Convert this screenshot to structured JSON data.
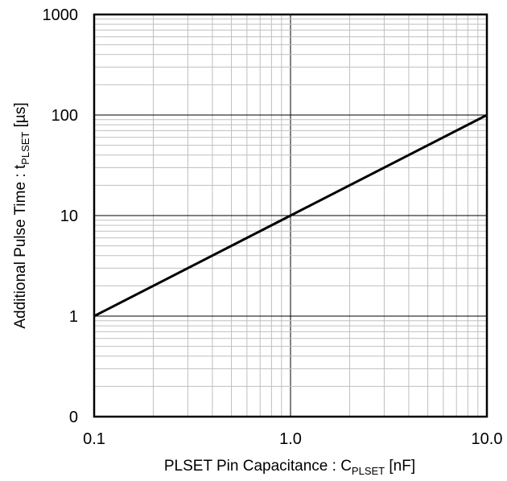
{
  "chart_data": {
    "type": "line",
    "x_scale": "log",
    "y_scale": "log",
    "xlim": [
      0.1,
      10.0
    ],
    "y_axis_range": "0 to 1000 (log decades)",
    "grid": true,
    "x_ticks": [
      "0.1",
      "1.0",
      "10.0"
    ],
    "y_ticks": [
      "0",
      "1",
      "10",
      "100",
      "1000"
    ],
    "xlabel": {
      "main": "PLSET Pin Capacitance : C",
      "subscript": "PLSET",
      "unit": " [nF]"
    },
    "ylabel": {
      "main": "Additional Pulse Time : t",
      "subscript": "PLSET",
      "unit": " [µs]"
    },
    "series": [
      {
        "x": [
          0.1,
          1.0,
          10.0
        ],
        "y": [
          1,
          10,
          100
        ]
      }
    ],
    "colors": {
      "line": "#000000",
      "grid": "#bfbfbf",
      "major_grid": "#000000"
    }
  }
}
